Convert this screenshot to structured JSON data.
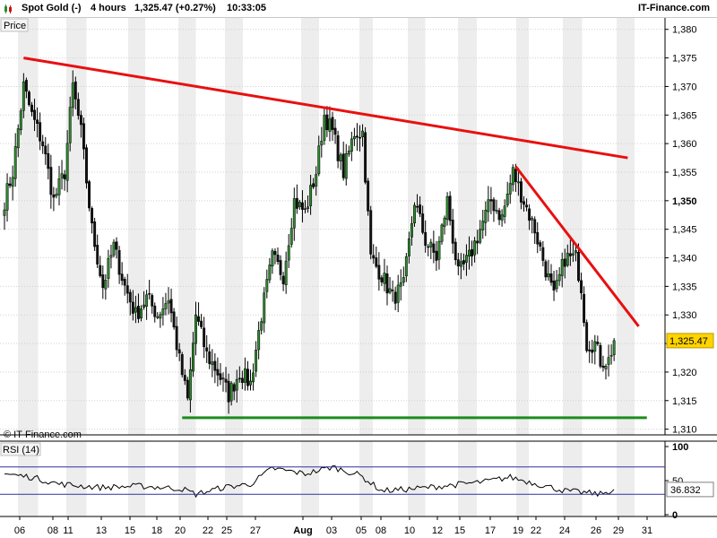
{
  "header": {
    "instrument": "Spot Gold (-)",
    "timeframe": "4 hours",
    "quote": "1,325.47 (+0.27%)",
    "time": "10:33:05",
    "brand": "IT-Finance.com",
    "colors": {
      "up_icon": "#2e8b2e",
      "down_icon": "#d01010"
    }
  },
  "main_panel": {
    "label": "Price",
    "watermark": "© IT-Finance.com",
    "last_price_label": "1,325.47",
    "y_ticks": [
      {
        "value": 1310,
        "label": "1,310"
      },
      {
        "value": 1315,
        "label": "1,315"
      },
      {
        "value": 1320,
        "label": "1,320"
      },
      {
        "value": 1325,
        "label": "1,325"
      },
      {
        "value": 1330,
        "label": "1,330"
      },
      {
        "value": 1335,
        "label": "1,335"
      },
      {
        "value": 1340,
        "label": "1,340"
      },
      {
        "value": 1345,
        "label": "1,345"
      },
      {
        "value": 1350,
        "label": "1,350",
        "bold": true
      },
      {
        "value": 1355,
        "label": "1,355"
      },
      {
        "value": 1360,
        "label": "1,360"
      },
      {
        "value": 1365,
        "label": "1,365"
      },
      {
        "value": 1370,
        "label": "1,370"
      },
      {
        "value": 1375,
        "label": "1,375"
      },
      {
        "value": 1380,
        "label": "1,380"
      }
    ]
  },
  "rsi_panel": {
    "label": "RSI (14)",
    "value_label": "36.832",
    "y_ticks": [
      {
        "value": 100,
        "label": "100"
      },
      {
        "value": 50,
        "label": "50"
      },
      {
        "value": 0,
        "label": "0"
      }
    ],
    "levels": [
      70,
      30
    ]
  },
  "x_axis": {
    "ticks": [
      {
        "label": "06"
      },
      {
        "label": "08"
      },
      {
        "label": "11"
      },
      {
        "label": "13"
      },
      {
        "label": "15"
      },
      {
        "label": "18"
      },
      {
        "label": "20"
      },
      {
        "label": "22"
      },
      {
        "label": "25"
      },
      {
        "label": "27"
      },
      {
        "label": "Aug",
        "bold": true
      },
      {
        "label": "03"
      },
      {
        "label": "05"
      },
      {
        "label": "08"
      },
      {
        "label": "10"
      },
      {
        "label": "12"
      },
      {
        "label": "15"
      },
      {
        "label": "17"
      },
      {
        "label": "19"
      },
      {
        "label": "22"
      },
      {
        "label": "24"
      },
      {
        "label": "26"
      },
      {
        "label": "29"
      },
      {
        "label": "31"
      }
    ]
  },
  "chart_data": {
    "type": "candlestick",
    "title": "Spot Gold (-)",
    "timeframe": "4 hours",
    "ylim": [
      1309,
      1382
    ],
    "y_unit": "Price",
    "anchors": [
      {
        "i": 0,
        "c": 1350
      },
      {
        "i": 3,
        "c": 1355
      },
      {
        "i": 7,
        "c": 1370
      },
      {
        "i": 10,
        "c": 1365
      },
      {
        "i": 14,
        "c": 1360
      },
      {
        "i": 18,
        "c": 1350
      },
      {
        "i": 22,
        "c": 1355
      },
      {
        "i": 25,
        "c": 1370
      },
      {
        "i": 28,
        "c": 1362
      },
      {
        "i": 32,
        "c": 1345
      },
      {
        "i": 36,
        "c": 1335
      },
      {
        "i": 40,
        "c": 1342
      },
      {
        "i": 44,
        "c": 1335
      },
      {
        "i": 48,
        "c": 1330
      },
      {
        "i": 52,
        "c": 1333
      },
      {
        "i": 56,
        "c": 1330
      },
      {
        "i": 60,
        "c": 1333
      },
      {
        "i": 64,
        "c": 1322
      },
      {
        "i": 67,
        "c": 1315
      },
      {
        "i": 70,
        "c": 1330
      },
      {
        "i": 74,
        "c": 1323
      },
      {
        "i": 78,
        "c": 1320
      },
      {
        "i": 82,
        "c": 1316
      },
      {
        "i": 86,
        "c": 1320
      },
      {
        "i": 90,
        "c": 1318
      },
      {
        "i": 94,
        "c": 1330
      },
      {
        "i": 98,
        "c": 1340
      },
      {
        "i": 102,
        "c": 1337
      },
      {
        "i": 106,
        "c": 1350
      },
      {
        "i": 110,
        "c": 1348
      },
      {
        "i": 114,
        "c": 1355
      },
      {
        "i": 117,
        "c": 1365
      },
      {
        "i": 120,
        "c": 1362
      },
      {
        "i": 124,
        "c": 1355
      },
      {
        "i": 128,
        "c": 1362
      },
      {
        "i": 131,
        "c": 1362
      },
      {
        "i": 134,
        "c": 1340
      },
      {
        "i": 138,
        "c": 1337
      },
      {
        "i": 142,
        "c": 1333
      },
      {
        "i": 146,
        "c": 1335
      },
      {
        "i": 150,
        "c": 1350
      },
      {
        "i": 154,
        "c": 1343
      },
      {
        "i": 158,
        "c": 1340
      },
      {
        "i": 162,
        "c": 1350
      },
      {
        "i": 166,
        "c": 1337
      },
      {
        "i": 170,
        "c": 1340
      },
      {
        "i": 174,
        "c": 1345
      },
      {
        "i": 178,
        "c": 1350
      },
      {
        "i": 182,
        "c": 1347
      },
      {
        "i": 186,
        "c": 1355
      },
      {
        "i": 190,
        "c": 1350
      },
      {
        "i": 194,
        "c": 1345
      },
      {
        "i": 198,
        "c": 1338
      },
      {
        "i": 201,
        "c": 1333
      },
      {
        "i": 205,
        "c": 1340
      },
      {
        "i": 209,
        "c": 1340
      },
      {
        "i": 211,
        "c": 1335
      },
      {
        "i": 213,
        "c": 1325
      },
      {
        "i": 216,
        "c": 1325
      },
      {
        "i": 218,
        "c": 1322
      },
      {
        "i": 221,
        "c": 1322
      },
      {
        "i": 223,
        "c": 1325.5
      }
    ],
    "trendlines": [
      {
        "name": "upper-resistance",
        "color": "#e81010",
        "points": [
          {
            "x": 7,
            "y": 1375
          },
          {
            "x": 228,
            "y": 1357.5
          }
        ]
      },
      {
        "name": "short-resistance",
        "color": "#e81010",
        "points": [
          {
            "x": 187,
            "y": 1356
          },
          {
            "x": 232,
            "y": 1328
          }
        ]
      },
      {
        "name": "support",
        "color": "#1e8c1e",
        "points": [
          {
            "x": 65,
            "y": 1312
          },
          {
            "x": 235,
            "y": 1312
          }
        ]
      }
    ],
    "rsi": {
      "name": "RSI (14)",
      "ylim": [
        0,
        100
      ],
      "levels": [
        70,
        30
      ],
      "anchors": [
        {
          "i": 0,
          "v": 60
        },
        {
          "i": 10,
          "v": 55
        },
        {
          "i": 20,
          "v": 45
        },
        {
          "i": 35,
          "v": 40
        },
        {
          "i": 50,
          "v": 42
        },
        {
          "i": 65,
          "v": 38
        },
        {
          "i": 70,
          "v": 30
        },
        {
          "i": 80,
          "v": 40
        },
        {
          "i": 90,
          "v": 45
        },
        {
          "i": 98,
          "v": 68
        },
        {
          "i": 110,
          "v": 60
        },
        {
          "i": 120,
          "v": 70
        },
        {
          "i": 130,
          "v": 58
        },
        {
          "i": 138,
          "v": 35
        },
        {
          "i": 150,
          "v": 38
        },
        {
          "i": 160,
          "v": 42
        },
        {
          "i": 175,
          "v": 48
        },
        {
          "i": 185,
          "v": 55
        },
        {
          "i": 195,
          "v": 45
        },
        {
          "i": 205,
          "v": 35
        },
        {
          "i": 213,
          "v": 32
        },
        {
          "i": 218,
          "v": 30
        },
        {
          "i": 223,
          "v": 37
        }
      ]
    }
  }
}
